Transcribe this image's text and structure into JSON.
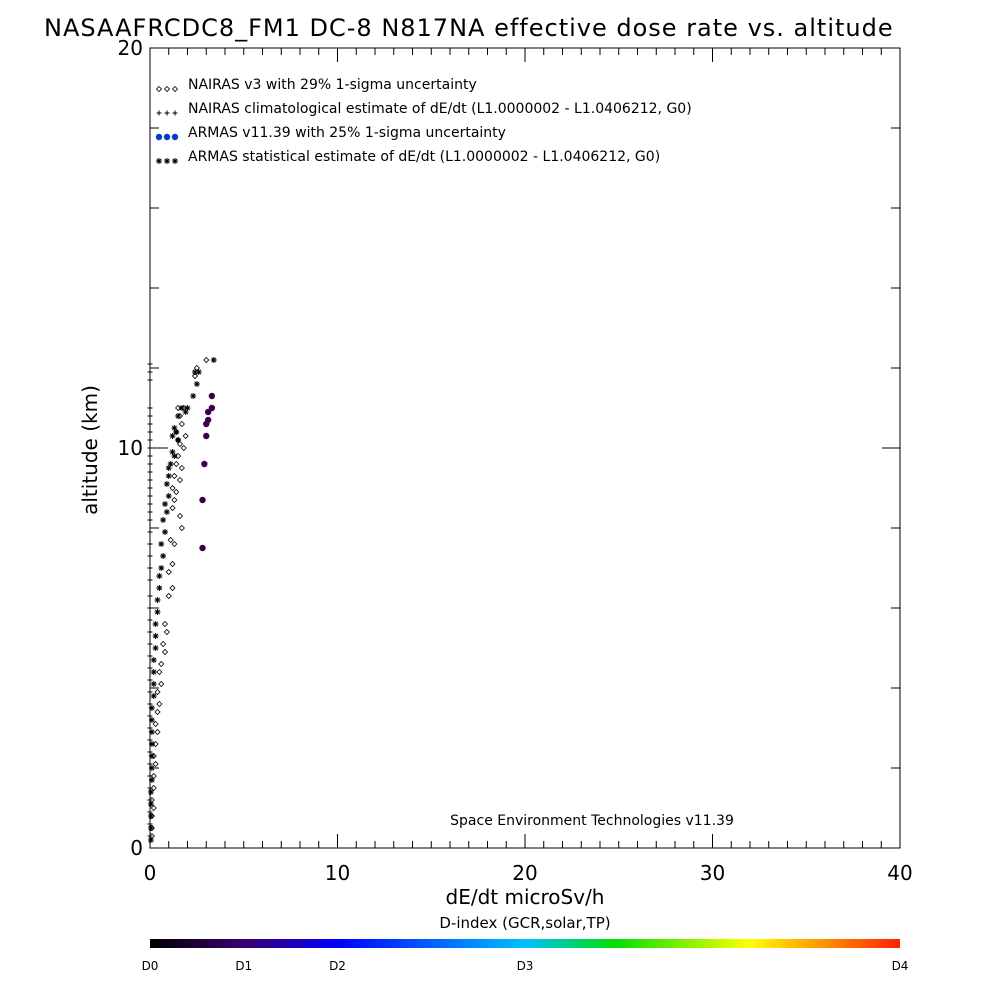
{
  "title": "NASAAFRCDC8_FM1 DC-8   N817NA effective dose rate vs. altitude",
  "chart_data": {
    "type": "scatter",
    "xlabel": "dE/dt microSv/h",
    "ylabel": "altitude (km)",
    "xlim": [
      0,
      40
    ],
    "ylim": [
      0,
      20
    ],
    "x_ticks": [
      0,
      10,
      20,
      30,
      40
    ],
    "y_ticks": [
      0,
      10,
      20
    ],
    "grid": false,
    "legend_position": "top-left",
    "legend": [
      "NAIRAS v3 with 29% 1-sigma uncertainty",
      "NAIRAS climatological estimate of dE/dt (L1.0000002 - L1.0406212, G0)",
      "ARMAS v11.39 with 25% 1-sigma uncertainty",
      "ARMAS statistical estimate of dE/dt (L1.0000002 - L1.0406212, G0)"
    ],
    "annotation": "Space Environment Technologies v11.39",
    "colorbar": {
      "title": "D-index (GCR,solar,TP)",
      "labels": [
        "D0",
        "D1",
        "D2",
        "D3",
        "D4"
      ],
      "label_positions": [
        0,
        0.125,
        0.25,
        0.5,
        1.0
      ],
      "colors": [
        "#000000",
        "#3a0070",
        "#0000ff",
        "#00c0ff",
        "#00e000",
        "#ffff00",
        "#ff2000"
      ]
    },
    "series": [
      {
        "name": "NAIRAS v3 with 29% 1-sigma uncertainty",
        "marker": "diamond",
        "color": "#000000",
        "points": [
          [
            3.0,
            12.2
          ],
          [
            2.5,
            12.0
          ],
          [
            2.4,
            11.8
          ],
          [
            1.8,
            11.0
          ],
          [
            1.5,
            11.0
          ],
          [
            1.6,
            10.8
          ],
          [
            1.7,
            10.6
          ],
          [
            1.4,
            10.4
          ],
          [
            1.5,
            10.2
          ],
          [
            1.6,
            10.1
          ],
          [
            1.9,
            10.3
          ],
          [
            1.8,
            10.0
          ],
          [
            1.5,
            9.8
          ],
          [
            1.4,
            9.6
          ],
          [
            1.7,
            9.5
          ],
          [
            1.3,
            9.3
          ],
          [
            1.6,
            9.2
          ],
          [
            1.2,
            9.0
          ],
          [
            1.4,
            8.9
          ],
          [
            1.3,
            8.7
          ],
          [
            1.2,
            8.5
          ],
          [
            1.6,
            8.3
          ],
          [
            1.7,
            8.0
          ],
          [
            1.1,
            7.7
          ],
          [
            1.3,
            7.6
          ],
          [
            1.2,
            7.1
          ],
          [
            1.0,
            6.9
          ],
          [
            1.2,
            6.5
          ],
          [
            1.0,
            6.3
          ],
          [
            0.8,
            5.6
          ],
          [
            0.9,
            5.4
          ],
          [
            0.7,
            5.1
          ],
          [
            0.8,
            4.9
          ],
          [
            0.6,
            4.6
          ],
          [
            0.5,
            4.4
          ],
          [
            0.6,
            4.1
          ],
          [
            0.4,
            3.9
          ],
          [
            0.5,
            3.6
          ],
          [
            0.4,
            3.4
          ],
          [
            0.3,
            3.1
          ],
          [
            0.4,
            2.9
          ],
          [
            0.3,
            2.6
          ],
          [
            0.2,
            2.3
          ],
          [
            0.3,
            2.1
          ],
          [
            0.2,
            1.8
          ],
          [
            0.2,
            1.5
          ],
          [
            0.1,
            1.2
          ],
          [
            0.2,
            1.0
          ],
          [
            0.1,
            0.8
          ],
          [
            0.1,
            0.5
          ],
          [
            0.1,
            0.3
          ]
        ]
      },
      {
        "name": "NAIRAS climatological estimate of dE/dt (L1.0000002 - L1.0406212, G0)",
        "marker": "plus",
        "color": "#000000",
        "points": [
          [
            0.0,
            12.1
          ],
          [
            0.0,
            11.9
          ],
          [
            0.0,
            11.7
          ],
          [
            0.0,
            11.0
          ],
          [
            0.0,
            10.8
          ],
          [
            0.0,
            10.6
          ],
          [
            0.0,
            10.4
          ],
          [
            0.0,
            10.2
          ],
          [
            0.0,
            10.0
          ],
          [
            0.0,
            9.8
          ],
          [
            0.0,
            9.6
          ],
          [
            0.0,
            9.4
          ],
          [
            0.0,
            9.2
          ],
          [
            0.0,
            9.0
          ],
          [
            0.0,
            8.8
          ],
          [
            0.0,
            8.6
          ],
          [
            0.0,
            8.4
          ],
          [
            0.0,
            8.2
          ],
          [
            0.0,
            7.9
          ],
          [
            0.0,
            7.6
          ],
          [
            0.0,
            7.3
          ],
          [
            0.0,
            7.0
          ],
          [
            0.0,
            6.7
          ],
          [
            0.0,
            6.3
          ],
          [
            0.0,
            6.0
          ],
          [
            0.0,
            5.7
          ],
          [
            0.0,
            5.4
          ],
          [
            0.0,
            5.1
          ],
          [
            0.0,
            4.8
          ],
          [
            0.0,
            4.5
          ],
          [
            0.0,
            4.2
          ],
          [
            0.0,
            3.9
          ],
          [
            0.0,
            3.6
          ],
          [
            0.0,
            3.3
          ],
          [
            0.0,
            3.0
          ],
          [
            0.0,
            2.7
          ],
          [
            0.0,
            2.4
          ],
          [
            0.0,
            2.1
          ],
          [
            0.0,
            1.8
          ],
          [
            0.0,
            1.5
          ],
          [
            0.0,
            1.2
          ],
          [
            0.0,
            0.9
          ],
          [
            0.0,
            0.6
          ],
          [
            0.0,
            0.3
          ]
        ]
      },
      {
        "name": "ARMAS v11.39 with 25% 1-sigma uncertainty",
        "marker": "dot",
        "color": "#3a0048",
        "points": [
          [
            3.3,
            11.3
          ],
          [
            3.3,
            11.0
          ],
          [
            3.1,
            10.9
          ],
          [
            3.1,
            10.7
          ],
          [
            3.0,
            10.6
          ],
          [
            3.0,
            10.3
          ],
          [
            2.9,
            9.6
          ],
          [
            2.8,
            8.7
          ],
          [
            2.8,
            7.5
          ]
        ]
      },
      {
        "name": "ARMAS statistical estimate of dE/dt (L1.0000002 - L1.0406212, G0)",
        "marker": "asterisk",
        "color": "#000000",
        "points": [
          [
            3.4,
            12.2
          ],
          [
            2.6,
            11.9
          ],
          [
            2.4,
            11.9
          ],
          [
            2.5,
            11.6
          ],
          [
            2.3,
            11.3
          ],
          [
            2.0,
            11.0
          ],
          [
            1.7,
            11.0
          ],
          [
            1.9,
            10.9
          ],
          [
            1.5,
            10.8
          ],
          [
            1.3,
            10.5
          ],
          [
            1.4,
            10.4
          ],
          [
            1.2,
            10.3
          ],
          [
            1.5,
            10.2
          ],
          [
            1.2,
            9.9
          ],
          [
            1.3,
            9.8
          ],
          [
            1.1,
            9.6
          ],
          [
            1.0,
            9.5
          ],
          [
            1.0,
            9.3
          ],
          [
            0.9,
            9.1
          ],
          [
            1.0,
            8.8
          ],
          [
            0.8,
            8.6
          ],
          [
            0.9,
            8.4
          ],
          [
            0.7,
            8.2
          ],
          [
            0.8,
            7.9
          ],
          [
            0.6,
            7.6
          ],
          [
            0.7,
            7.3
          ],
          [
            0.6,
            7.0
          ],
          [
            0.5,
            6.8
          ],
          [
            0.5,
            6.5
          ],
          [
            0.4,
            6.2
          ],
          [
            0.4,
            5.9
          ],
          [
            0.3,
            5.6
          ],
          [
            0.3,
            5.3
          ],
          [
            0.3,
            5.0
          ],
          [
            0.2,
            4.7
          ],
          [
            0.2,
            4.4
          ],
          [
            0.2,
            4.1
          ],
          [
            0.2,
            3.8
          ],
          [
            0.1,
            3.5
          ],
          [
            0.1,
            3.2
          ],
          [
            0.1,
            2.9
          ],
          [
            0.1,
            2.6
          ],
          [
            0.1,
            2.3
          ],
          [
            0.1,
            2.0
          ],
          [
            0.1,
            1.7
          ],
          [
            0.05,
            1.4
          ],
          [
            0.05,
            1.1
          ],
          [
            0.05,
            0.8
          ],
          [
            0.05,
            0.5
          ],
          [
            0.05,
            0.2
          ]
        ]
      }
    ]
  }
}
